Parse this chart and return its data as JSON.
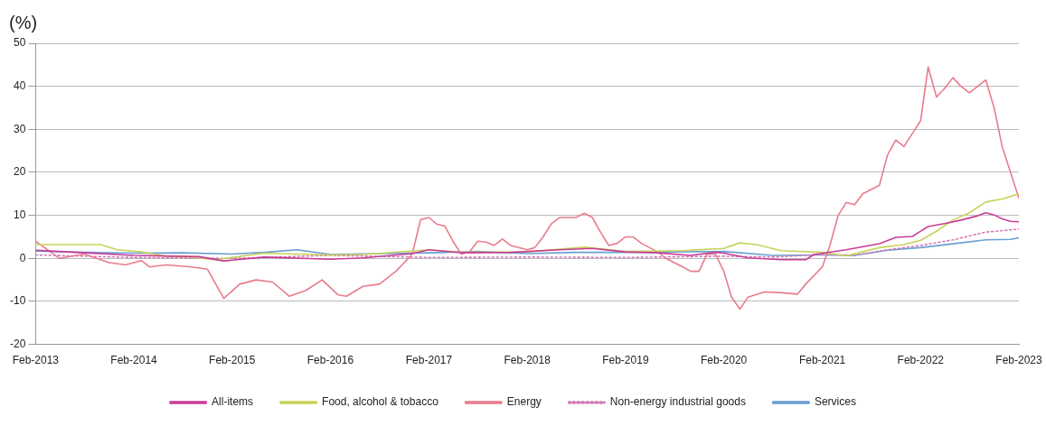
{
  "chart_data": {
    "type": "line",
    "ylabel": "(%)",
    "xlim": [
      "2013-02",
      "2023-02"
    ],
    "xticks": [
      {
        "value": "2013-02",
        "label": "Feb-2013"
      },
      {
        "value": "2014-02",
        "label": "Feb-2014"
      },
      {
        "value": "2015-02",
        "label": "Feb-2015"
      },
      {
        "value": "2016-02",
        "label": "Feb-2016"
      },
      {
        "value": "2017-02",
        "label": "Feb-2017"
      },
      {
        "value": "2018-02",
        "label": "Feb-2018"
      },
      {
        "value": "2019-02",
        "label": "Feb-2019"
      },
      {
        "value": "2020-02",
        "label": "Feb-2020"
      },
      {
        "value": "2021-02",
        "label": "Feb-2021"
      },
      {
        "value": "2022-02",
        "label": "Feb-2022"
      },
      {
        "value": "2023-02",
        "label": "Feb-2023"
      }
    ],
    "ylim": [
      -20,
      50
    ],
    "yticks": [
      -20,
      -10,
      0,
      10,
      20,
      30,
      40,
      50
    ],
    "grid": "y",
    "legend": "bottom",
    "marker": "none",
    "series": [
      {
        "name": "All-items",
        "color": "#c83c96",
        "x": [
          "2013-02",
          "2013-06",
          "2014-02",
          "2014-10",
          "2015-01",
          "2015-06",
          "2016-02",
          "2016-06",
          "2016-12",
          "2017-02",
          "2017-06",
          "2017-12",
          "2018-06",
          "2018-10",
          "2019-02",
          "2019-06",
          "2019-10",
          "2020-01",
          "2020-02",
          "2020-05",
          "2020-09",
          "2020-12",
          "2021-01",
          "2021-05",
          "2021-09",
          "2021-11",
          "2022-01",
          "2022-03",
          "2022-05",
          "2022-07",
          "2022-09",
          "2022-10",
          "2022-11",
          "2022-12",
          "2023-01",
          "2023-02"
        ],
        "values": [
          1.9,
          1.5,
          0.7,
          0.4,
          -0.6,
          0.3,
          -0.2,
          0.1,
          1.1,
          2.0,
          1.3,
          1.4,
          2.0,
          2.3,
          1.5,
          1.3,
          0.7,
          1.4,
          1.2,
          0.1,
          -0.3,
          -0.3,
          0.9,
          2.0,
          3.4,
          4.9,
          5.1,
          7.4,
          8.1,
          8.9,
          9.9,
          10.6,
          10.1,
          9.2,
          8.6,
          8.5
        ]
      },
      {
        "name": "Food, alcohol & tobacco",
        "color": "#c8d25a",
        "x": [
          "2013-02",
          "2013-05",
          "2013-10",
          "2013-12",
          "2014-03",
          "2014-06",
          "2014-09",
          "2014-12",
          "2015-06",
          "2016-02",
          "2016-06",
          "2017-02",
          "2017-06",
          "2018-02",
          "2018-09",
          "2019-02",
          "2019-09",
          "2020-02",
          "2020-04",
          "2020-06",
          "2020-09",
          "2021-02",
          "2021-05",
          "2021-09",
          "2021-12",
          "2022-02",
          "2022-04",
          "2022-06",
          "2022-08",
          "2022-10",
          "2022-12",
          "2023-02"
        ],
        "values": [
          3.2,
          3.2,
          3.2,
          2.0,
          1.5,
          0.5,
          0.3,
          -0.3,
          1.2,
          0.8,
          0.9,
          2.0,
          1.4,
          1.5,
          2.6,
          1.6,
          1.8,
          2.3,
          3.6,
          3.2,
          1.8,
          1.4,
          0.6,
          2.5,
          3.2,
          4.2,
          6.3,
          8.9,
          10.6,
          13.1,
          13.8,
          15.0
        ]
      },
      {
        "name": "Energy",
        "color": "#e87c8c",
        "x": [
          "2013-02",
          "2013-05",
          "2013-08",
          "2013-11",
          "2014-01",
          "2014-03",
          "2014-04",
          "2014-06",
          "2014-09",
          "2014-11",
          "2015-01",
          "2015-03",
          "2015-05",
          "2015-07",
          "2015-09",
          "2015-11",
          "2016-01",
          "2016-03",
          "2016-04",
          "2016-06",
          "2016-08",
          "2016-10",
          "2016-11",
          "2016-12",
          "2017-01",
          "2017-02",
          "2017-03",
          "2017-04",
          "2017-05",
          "2017-06",
          "2017-07",
          "2017-08",
          "2017-09",
          "2017-10",
          "2017-11",
          "2017-12",
          "2018-02",
          "2018-03",
          "2018-04",
          "2018-05",
          "2018-06",
          "2018-08",
          "2018-09",
          "2018-10",
          "2018-11",
          "2018-12",
          "2019-01",
          "2019-02",
          "2019-03",
          "2019-04",
          "2019-06",
          "2019-07",
          "2019-09",
          "2019-10",
          "2019-11",
          "2019-12",
          "2020-01",
          "2020-02",
          "2020-03",
          "2020-04",
          "2020-05",
          "2020-07",
          "2020-09",
          "2020-11",
          "2020-12",
          "2021-02",
          "2021-03",
          "2021-04",
          "2021-05",
          "2021-06",
          "2021-07",
          "2021-09",
          "2021-10",
          "2021-11",
          "2021-12",
          "2022-01",
          "2022-02",
          "2022-03",
          "2022-04",
          "2022-05",
          "2022-06",
          "2022-07",
          "2022-08",
          "2022-09",
          "2022-10",
          "2022-11",
          "2022-12",
          "2023-01",
          "2023-02"
        ],
        "values": [
          4,
          0,
          1,
          -1,
          -1.5,
          -0.5,
          -2,
          -1.5,
          -2,
          -2.5,
          -9.3,
          -6,
          -5,
          -5.5,
          -8.8,
          -7.5,
          -5,
          -8.5,
          -8.8,
          -6.5,
          -6,
          -3,
          -1,
          1,
          9,
          9.5,
          8,
          7.5,
          4,
          1,
          1.5,
          4,
          3.8,
          3,
          4.5,
          3,
          2,
          2.5,
          5,
          8,
          9.5,
          9.5,
          10.5,
          9.5,
          6,
          3,
          3.5,
          5,
          5,
          3.5,
          1.5,
          0,
          -2,
          -3,
          -3,
          1,
          1,
          -3,
          -9,
          -11.8,
          -9,
          -7.8,
          -8,
          -8.3,
          -6,
          -2,
          3,
          10,
          13,
          12.5,
          15,
          17,
          24,
          27.5,
          26,
          29,
          32,
          44.5,
          37.5,
          39.5,
          42,
          40,
          38.5,
          40,
          41.5,
          35,
          26,
          20,
          14
        ]
      },
      {
        "name": "Non-energy industrial goods",
        "color": "#d27ab4",
        "line_style": "dotted",
        "x": [
          "2013-02",
          "2013-06",
          "2014-02",
          "2015-02",
          "2016-02",
          "2017-02",
          "2018-02",
          "2019-02",
          "2020-02",
          "2020-08",
          "2021-02",
          "2021-06",
          "2021-10",
          "2022-02",
          "2022-06",
          "2022-10",
          "2023-02"
        ],
        "values": [
          0.8,
          0.6,
          0.2,
          0.0,
          0.7,
          0.2,
          0.3,
          0.2,
          0.5,
          0.3,
          0.9,
          0.7,
          2.0,
          3.0,
          4.3,
          6.1,
          6.8
        ]
      },
      {
        "name": "Services",
        "color": "#6a9ed2",
        "x": [
          "2013-02",
          "2013-08",
          "2014-02",
          "2014-08",
          "2015-02",
          "2015-06",
          "2015-10",
          "2016-02",
          "2016-08",
          "2017-02",
          "2017-08",
          "2018-02",
          "2018-08",
          "2019-02",
          "2019-08",
          "2020-02",
          "2020-08",
          "2021-02",
          "2021-06",
          "2021-10",
          "2022-02",
          "2022-06",
          "2022-10",
          "2023-01",
          "2023-02"
        ],
        "values": [
          1.7,
          1.4,
          1.2,
          1.3,
          1.0,
          1.4,
          2.0,
          0.9,
          1.1,
          1.3,
          1.6,
          1.1,
          1.4,
          1.4,
          1.5,
          1.6,
          0.7,
          0.8,
          0.7,
          1.9,
          2.5,
          3.4,
          4.3,
          4.4,
          4.8
        ]
      }
    ]
  }
}
